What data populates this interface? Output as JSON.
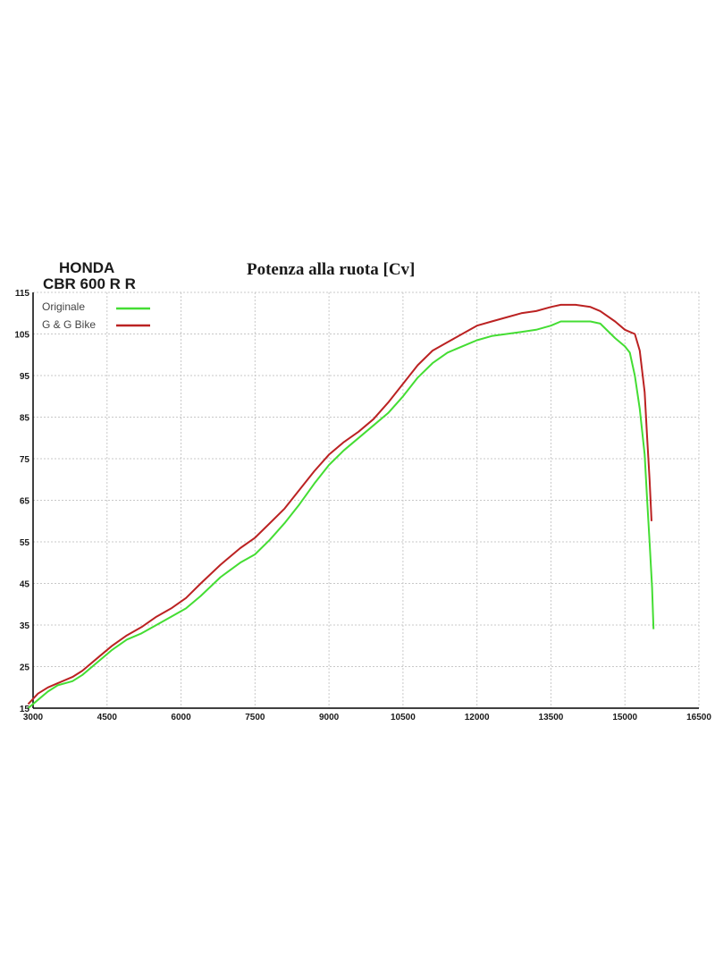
{
  "header": {
    "brand_line1": "HONDA",
    "brand_line2": "CBR 600 R R"
  },
  "chart_data": {
    "type": "line",
    "title": "Potenza alla ruota  [Cv]",
    "xlabel": "",
    "ylabel": "",
    "xlim": [
      3000,
      16500
    ],
    "ylim": [
      15,
      115
    ],
    "x_ticks": [
      3000,
      4500,
      6000,
      7500,
      9000,
      10500,
      12000,
      13500,
      15000,
      16500
    ],
    "x_tick_labels": [
      "3000",
      "4500",
      "6000",
      "7500",
      "9000",
      "10500",
      "12000",
      "13500",
      "15000",
      "16500"
    ],
    "y_ticks": [
      15,
      25,
      35,
      45,
      55,
      65,
      75,
      85,
      95,
      105,
      115
    ],
    "y_tick_labels": [
      "15",
      "25",
      "35",
      "45",
      "55",
      "65",
      "75",
      "85",
      "95",
      "105",
      "115"
    ],
    "grid": true,
    "legend_position": "top-left",
    "series": [
      {
        "name": "Originale",
        "color": "#44dd33",
        "x": [
          2900,
          3100,
          3300,
          3500,
          3800,
          4000,
          4300,
          4600,
          4900,
          5200,
          5500,
          5800,
          6100,
          6400,
          6800,
          7200,
          7500,
          7800,
          8100,
          8400,
          8700,
          9000,
          9300,
          9600,
          9900,
          10200,
          10500,
          10800,
          11100,
          11400,
          11700,
          12000,
          12300,
          12600,
          12900,
          13200,
          13500,
          13700,
          14000,
          14300,
          14500,
          14800,
          15000,
          15100,
          15200,
          15300,
          15400,
          15450,
          15500,
          15550,
          15580
        ],
        "values": [
          15,
          17,
          19,
          20.5,
          21.5,
          23,
          26,
          29,
          31.5,
          33,
          35,
          37,
          39,
          42,
          46.5,
          50,
          52,
          55.5,
          59.5,
          64,
          69,
          73.5,
          77,
          80,
          83,
          86,
          90,
          94.5,
          98,
          100.5,
          102,
          103.5,
          104.5,
          105,
          105.5,
          106,
          107,
          108,
          108,
          108,
          107.5,
          104,
          102,
          100.5,
          95,
          87,
          76,
          65,
          55,
          44,
          34
        ]
      },
      {
        "name": "G & G Bike",
        "color": "#bb2222",
        "x": [
          2900,
          3100,
          3300,
          3500,
          3800,
          4000,
          4300,
          4600,
          4900,
          5200,
          5500,
          5800,
          6100,
          6400,
          6800,
          7200,
          7500,
          7800,
          8100,
          8400,
          8700,
          9000,
          9300,
          9600,
          9900,
          10200,
          10500,
          10800,
          11100,
          11400,
          11700,
          12000,
          12300,
          12600,
          12900,
          13200,
          13500,
          13700,
          14000,
          14300,
          14500,
          14800,
          15000,
          15100,
          15200,
          15300,
          15400,
          15450,
          15500,
          15540
        ],
        "values": [
          16,
          18.5,
          20,
          21,
          22.5,
          24,
          27,
          30,
          32.5,
          34.5,
          37,
          39,
          41.5,
          45,
          49.5,
          53.5,
          56,
          59.5,
          63,
          67.5,
          72,
          76,
          79,
          81.5,
          84.5,
          88.5,
          93,
          97.5,
          101,
          103,
          105,
          107,
          108,
          109,
          110,
          110.5,
          111.5,
          112,
          112,
          111.5,
          110.5,
          108,
          106,
          105.5,
          105,
          101,
          91,
          80,
          70,
          60
        ]
      }
    ]
  }
}
